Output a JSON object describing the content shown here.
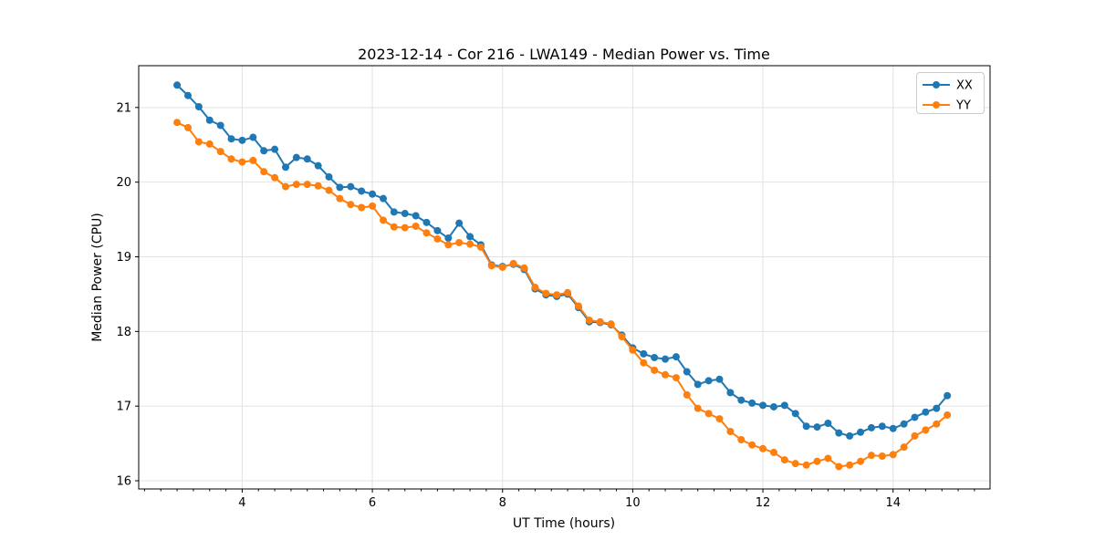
{
  "chart_data": {
    "type": "line",
    "title": "2023-12-14 - Cor 216 - LWA149 - Median Power vs. Time",
    "xlabel": "UT Time (hours)",
    "ylabel": "Median Power (CPU)",
    "xlim": [
      2.41,
      15.49
    ],
    "ylim": [
      15.89,
      21.56
    ],
    "grid": true,
    "grid_color": "#e2e2e2",
    "background_color": "#ffffff",
    "spine_color": "#000000",
    "x_major_ticks": [
      4,
      6,
      8,
      10,
      12,
      14
    ],
    "x_tick_labels": [
      "4",
      "6",
      "8",
      "10",
      "12",
      "14"
    ],
    "x_minor_tick_step": 0.25,
    "y_major_ticks": [
      16,
      17,
      18,
      19,
      20,
      21
    ],
    "y_tick_labels": [
      "16",
      "17",
      "18",
      "19",
      "20",
      "21"
    ],
    "legend": {
      "position": "upper right",
      "entries": [
        {
          "label": "XX",
          "color": "#1f77b4"
        },
        {
          "label": "YY",
          "color": "#ff7f0e"
        }
      ]
    },
    "x": [
      3.0,
      3.167,
      3.333,
      3.5,
      3.667,
      3.833,
      4.0,
      4.167,
      4.333,
      4.5,
      4.667,
      4.833,
      5.0,
      5.167,
      5.333,
      5.5,
      5.667,
      5.833,
      6.0,
      6.167,
      6.333,
      6.5,
      6.667,
      6.833,
      7.0,
      7.167,
      7.333,
      7.5,
      7.667,
      7.833,
      8.0,
      8.167,
      8.333,
      8.5,
      8.667,
      8.833,
      9.0,
      9.167,
      9.333,
      9.5,
      9.667,
      9.833,
      10.0,
      10.167,
      10.333,
      10.5,
      10.667,
      10.833,
      11.0,
      11.167,
      11.333,
      11.5,
      11.667,
      11.833,
      12.0,
      12.167,
      12.333,
      12.5,
      12.667,
      12.833,
      13.0,
      13.167,
      13.333,
      13.5,
      13.667,
      13.833,
      14.0,
      14.167,
      14.333,
      14.5,
      14.667,
      14.833
    ],
    "series": [
      {
        "name": "XX",
        "color": "#1f77b4",
        "marker": "circle",
        "values": [
          21.3,
          21.16,
          21.01,
          20.83,
          20.76,
          20.58,
          20.56,
          20.6,
          20.42,
          20.44,
          20.2,
          20.33,
          20.31,
          20.22,
          20.07,
          19.93,
          19.94,
          19.88,
          19.84,
          19.78,
          19.6,
          19.58,
          19.55,
          19.46,
          19.35,
          19.25,
          19.45,
          19.27,
          19.16,
          18.89,
          18.87,
          18.9,
          18.83,
          18.57,
          18.49,
          18.47,
          18.5,
          18.32,
          18.13,
          18.12,
          18.09,
          17.95,
          17.78,
          17.7,
          17.65,
          17.63,
          17.66,
          17.46,
          17.29,
          17.34,
          17.36,
          17.18,
          17.08,
          17.04,
          17.01,
          16.99,
          17.01,
          16.9,
          16.73,
          16.72,
          16.77,
          16.64,
          16.6,
          16.65,
          16.71,
          16.73,
          16.7,
          16.76,
          16.85,
          16.92,
          16.97,
          17.14
        ]
      },
      {
        "name": "YY",
        "color": "#ff7f0e",
        "marker": "circle",
        "values": [
          20.8,
          20.73,
          20.54,
          20.51,
          20.41,
          20.31,
          20.27,
          20.29,
          20.14,
          20.06,
          19.94,
          19.97,
          19.97,
          19.95,
          19.89,
          19.78,
          19.7,
          19.66,
          19.68,
          19.49,
          19.4,
          19.39,
          19.41,
          19.32,
          19.24,
          19.16,
          19.19,
          19.17,
          19.13,
          18.88,
          18.86,
          18.91,
          18.85,
          18.59,
          18.51,
          18.49,
          18.52,
          18.34,
          18.15,
          18.13,
          18.1,
          17.93,
          17.75,
          17.58,
          17.48,
          17.42,
          17.38,
          17.15,
          16.97,
          16.9,
          16.83,
          16.66,
          16.55,
          16.48,
          16.43,
          16.38,
          16.28,
          16.23,
          16.21,
          16.26,
          16.3,
          16.19,
          16.21,
          16.26,
          16.34,
          16.33,
          16.35,
          16.45,
          16.6,
          16.68,
          16.76,
          16.88
        ]
      }
    ]
  }
}
